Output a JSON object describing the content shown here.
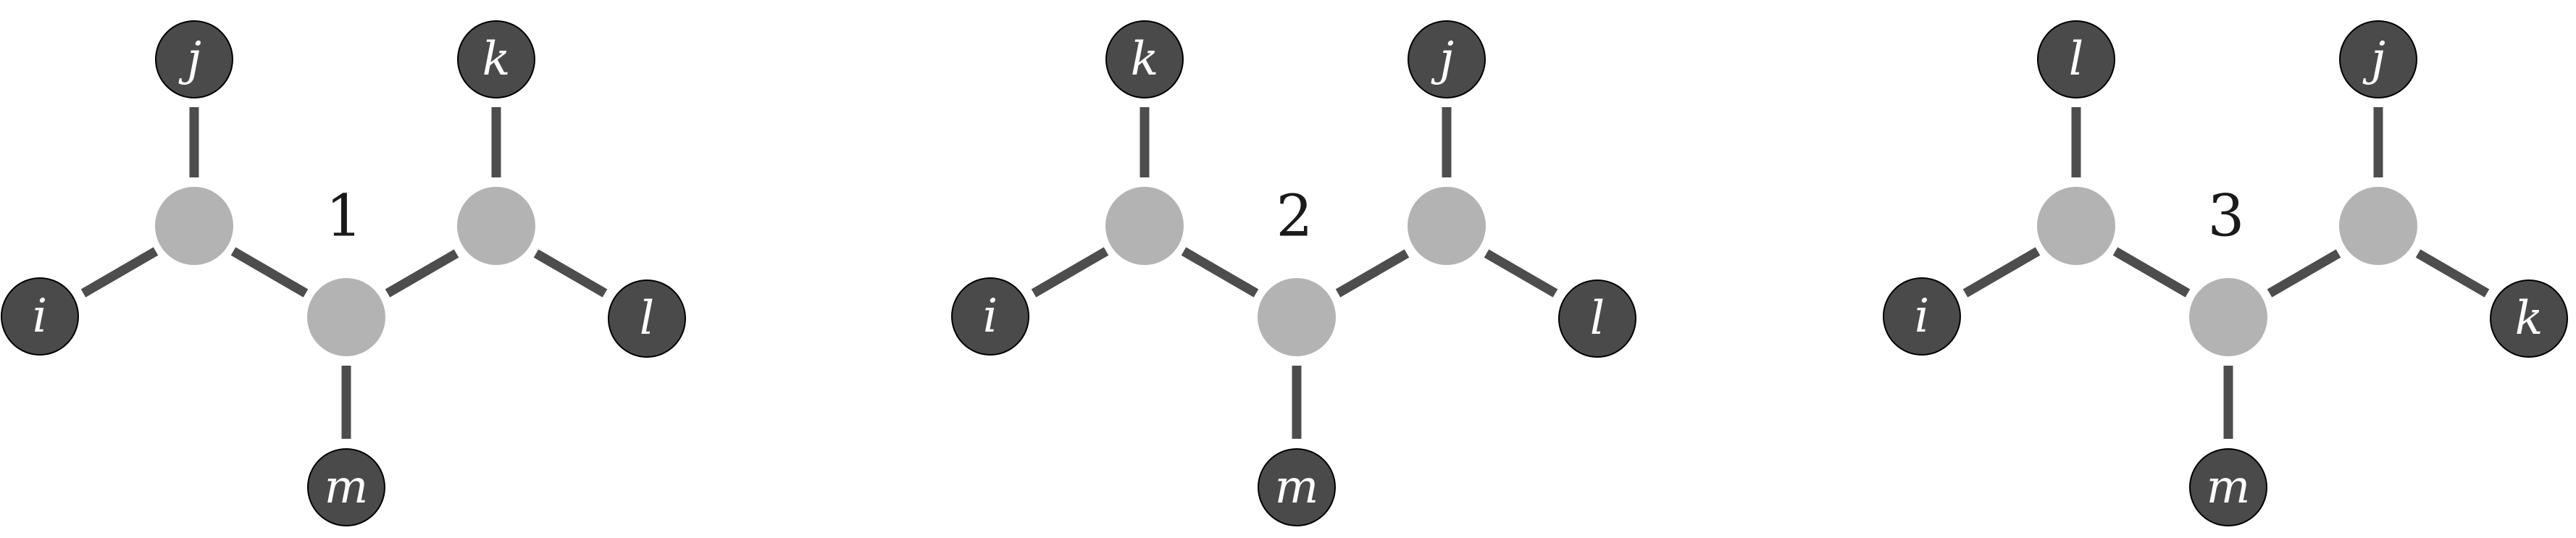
{
  "trees": [
    {
      "label": "1",
      "leaves": {
        "upper_left": "j",
        "upper_right": "k",
        "left": "i",
        "right": "l",
        "bottom": "m"
      }
    },
    {
      "label": "2",
      "leaves": {
        "upper_left": "k",
        "upper_right": "j",
        "left": "i",
        "right": "l",
        "bottom": "m"
      }
    },
    {
      "label": "3",
      "leaves": {
        "upper_left": "l",
        "upper_right": "j",
        "left": "i",
        "right": "k",
        "bottom": "m"
      }
    }
  ],
  "colors": {
    "leaf_node": "#4a4a4a",
    "inner_node": "#b3b3b3",
    "bond": "#4d4d4d",
    "leaf_text": "#ffffff",
    "tree_label": "#1a1a1a"
  }
}
